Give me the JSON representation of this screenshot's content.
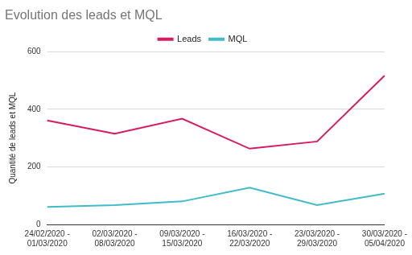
{
  "chart_data": {
    "type": "line",
    "title": "Evolution des leads et MQL",
    "y_label": "Quantité de leads et MQL",
    "categories": [
      "24/02/2020 - 01/03/2020",
      "02/03/2020 - 08/03/2020",
      "09/03/2020 - 15/03/2020",
      "16/03/2020 - 22/03/2020",
      "23/03/2020 - 29/03/2020",
      "30/03/2020 - 05/04/2020"
    ],
    "series": [
      {
        "name": "Leads",
        "color": "#d81b60",
        "marker": "none",
        "values": [
          361,
          315,
          367,
          263,
          288,
          517
        ]
      },
      {
        "name": "MQL",
        "color": "#3fbcc9",
        "marker": "none",
        "values": [
          61,
          67,
          80,
          128,
          67,
          107
        ]
      }
    ],
    "ylim": [
      0,
      600
    ],
    "yticks": [
      0,
      200,
      400,
      600
    ],
    "grid": true,
    "legend": "top"
  }
}
